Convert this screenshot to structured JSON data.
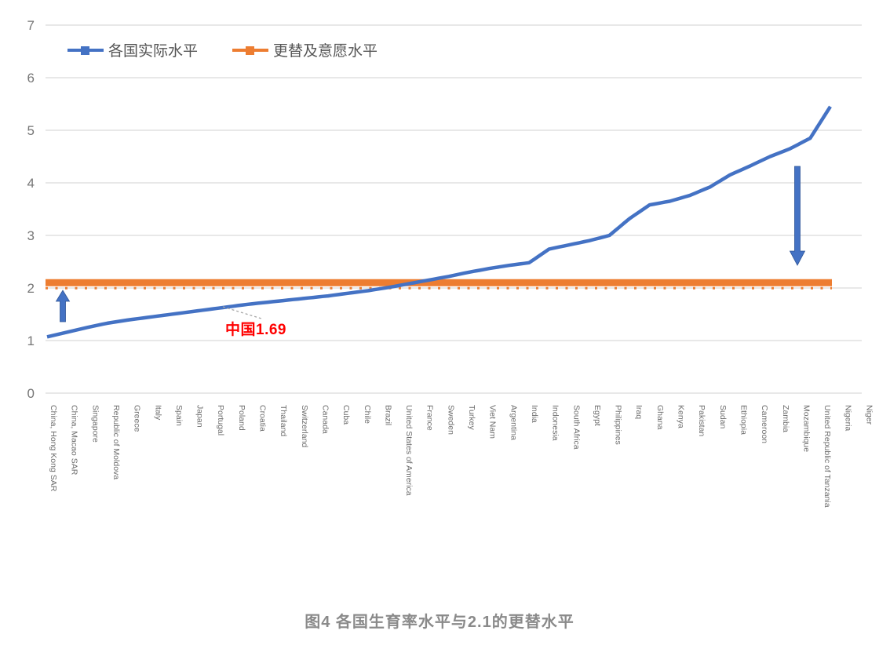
{
  "chart_data": {
    "type": "line",
    "title": "图4 各国生育率水平与2.1的更替水平",
    "ylim": [
      0,
      7
    ],
    "yticks": [
      0,
      1,
      2,
      3,
      4,
      5,
      6,
      7
    ],
    "grid": "horizontal",
    "legend_position": "top-left",
    "x_labels_rotated_90": true,
    "categories": [
      "China, Hong Kong SAR",
      "China, Macao SAR",
      "Singapore",
      "Republic of Moldova",
      "Greece",
      "Italy",
      "Spain",
      "Japan",
      "Portugal",
      "Poland",
      "Croatia",
      "Thailand",
      "Switzerland",
      "Canada",
      "Cuba",
      "Chile",
      "Brazil",
      "United States of America",
      "France",
      "Sweden",
      "Turkey",
      "Viet Nam",
      "Argentina",
      "India",
      "Indonesia",
      "South Africa",
      "Egypt",
      "Philippines",
      "Iraq",
      "Ghana",
      "Kenya",
      "Pakistan",
      "Sudan",
      "Ethiopia",
      "Cameroon",
      "Zambia",
      "Mozambique",
      "United Republic of Tanzania",
      "Nigeria",
      "Niger"
    ],
    "series": [
      {
        "name": "各国实际水平",
        "color": "#4472C4",
        "values": [
          1.07,
          1.16,
          1.25,
          1.33,
          1.39,
          1.44,
          1.49,
          1.54,
          1.59,
          1.64,
          1.69,
          1.73,
          1.77,
          1.81,
          1.85,
          1.9,
          1.95,
          2.01,
          2.08,
          2.15,
          2.22,
          2.3,
          2.37,
          2.43,
          2.48,
          2.74,
          2.82,
          2.9,
          3.0,
          3.32,
          3.58,
          3.65,
          3.76,
          3.92,
          4.15,
          4.32,
          4.5,
          4.65,
          4.85,
          5.45
        ]
      },
      {
        "name": "更替及意愿水平",
        "color": "#ED7D31",
        "value_constant": 2.1
      }
    ],
    "annotations": {
      "china": {
        "text": "中国1.69",
        "value": 1.69,
        "color": "#ff0000"
      },
      "arrow_up": {
        "direction": "up",
        "note": "from low actual level up toward 2.1"
      },
      "arrow_down": {
        "direction": "down",
        "note": "from high actual level down toward 2.1"
      }
    }
  }
}
